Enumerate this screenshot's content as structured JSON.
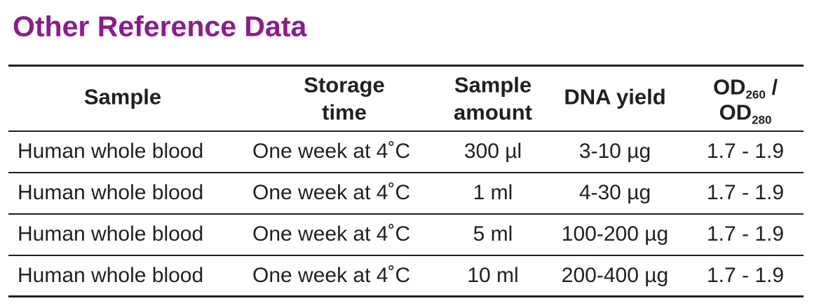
{
  "title": "Other Reference Data",
  "table": {
    "header": [
      [
        "Sample"
      ],
      [
        "Storage",
        "time"
      ],
      [
        "Sample",
        "amount"
      ],
      [
        "DNA yield"
      ]
    ],
    "od_header": {
      "top": "OD",
      "top_sub": "260",
      "slash": "/",
      "bottom": "OD",
      "bottom_sub": "280"
    },
    "rows": [
      [
        "Human whole blood",
        "One week at 4˚C",
        "300 µl",
        "3-10 µg",
        "1.7 - 1.9"
      ],
      [
        "Human whole blood",
        "One week at 4˚C",
        "1 ml",
        "4-30 µg",
        "1.7 - 1.9"
      ],
      [
        "Human whole blood",
        "One week at 4˚C",
        "5 ml",
        "100-200 µg",
        "1.7 - 1.9"
      ],
      [
        "Human whole blood",
        "One week at 4˚C",
        "10 ml",
        "200-400 µg",
        "1.7 - 1.9"
      ]
    ]
  }
}
